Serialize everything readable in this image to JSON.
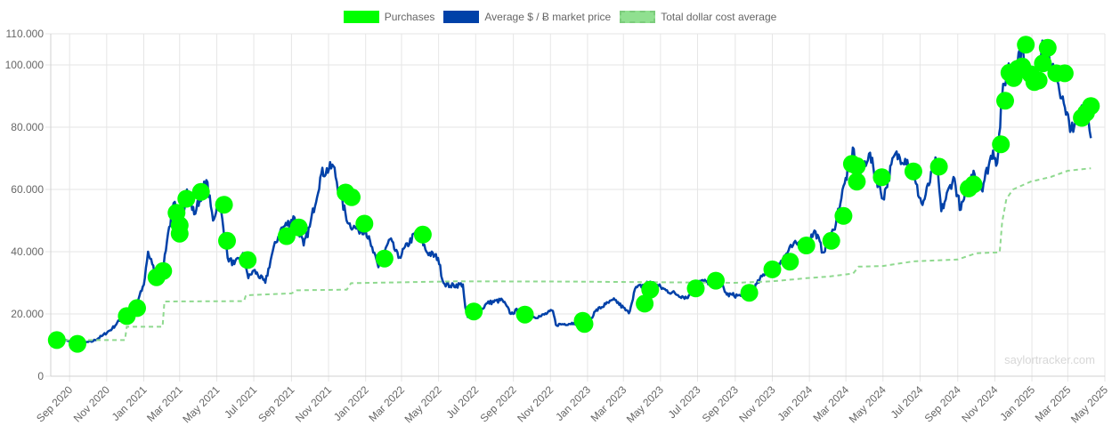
{
  "legend": {
    "purchases": "Purchases",
    "avg_price": "Average $ / Ƀ market price",
    "tdca": "Total dollar cost average"
  },
  "watermark": "saylortracker.com",
  "colors": {
    "purchases": "#00ff00",
    "avg_price": "#0041a8",
    "tdca": "#8fd98f",
    "grid": "#e6e6e6",
    "tick_text": "#666666"
  },
  "chart_data": {
    "type": "line",
    "ylim": [
      0,
      110000
    ],
    "y_ticks": [
      0,
      20000,
      40000,
      60000,
      80000,
      100000,
      110000
    ],
    "y_tick_labels": [
      "0",
      "20.000",
      "40.000",
      "60.000",
      "80.000",
      "100.000",
      "110.000"
    ],
    "x_tick_dates": [
      "2020-09-01",
      "2020-11-01",
      "2021-01-01",
      "2021-03-01",
      "2021-05-01",
      "2021-07-01",
      "2021-09-01",
      "2021-11-01",
      "2022-01-01",
      "2022-03-01",
      "2022-05-01",
      "2022-07-01",
      "2022-09-01",
      "2022-11-01",
      "2023-01-01",
      "2023-03-01",
      "2023-05-01",
      "2023-07-01",
      "2023-09-01",
      "2023-11-01",
      "2024-01-01",
      "2024-03-01",
      "2024-05-01",
      "2024-07-01",
      "2024-09-01",
      "2024-11-01",
      "2025-01-01",
      "2025-03-01",
      "2025-05-01"
    ],
    "x_tick_labels": [
      "Sep 2020",
      "Nov 2020",
      "Jan 2021",
      "Mar 2021",
      "May 2021",
      "Jul 2021",
      "Sep 2021",
      "Nov 2021",
      "Jan 2022",
      "Mar 2022",
      "May 2022",
      "Jul 2022",
      "Sep 2022",
      "Nov 2022",
      "Jan 2023",
      "Mar 2023",
      "May 2023",
      "Jul 2023",
      "Sep 2023",
      "Nov 2023",
      "Jan 2024",
      "Mar 2024",
      "May 2024",
      "Jul 2024",
      "Sep 2024",
      "Nov 2024",
      "Jan 2025",
      "Mar 2025",
      "May 2025"
    ],
    "legend_position": "top",
    "grid": true,
    "series": [
      {
        "name": "Average $ / Ƀ market price",
        "style": "line",
        "points": [
          [
            "2020-08-10",
            11700
          ],
          [
            "2020-08-25",
            11600
          ],
          [
            "2020-09-10",
            10300
          ],
          [
            "2020-09-25",
            10700
          ],
          [
            "2020-10-10",
            11300
          ],
          [
            "2020-10-25",
            13000
          ],
          [
            "2020-11-10",
            15300
          ],
          [
            "2020-11-25",
            18500
          ],
          [
            "2020-12-10",
            18200
          ],
          [
            "2020-12-20",
            23000
          ],
          [
            "2021-01-01",
            29300
          ],
          [
            "2021-01-08",
            40000
          ],
          [
            "2021-01-15",
            36000
          ],
          [
            "2021-01-22",
            31000
          ],
          [
            "2021-02-01",
            34000
          ],
          [
            "2021-02-10",
            46000
          ],
          [
            "2021-02-21",
            56000
          ],
          [
            "2021-02-28",
            45000
          ],
          [
            "2021-03-13",
            60000
          ],
          [
            "2021-03-25",
            52000
          ],
          [
            "2021-04-14",
            63000
          ],
          [
            "2021-04-25",
            50000
          ],
          [
            "2021-05-05",
            57000
          ],
          [
            "2021-05-19",
            38000
          ],
          [
            "2021-05-30",
            36000
          ],
          [
            "2021-06-15",
            39000
          ],
          [
            "2021-06-22",
            31500
          ],
          [
            "2021-07-01",
            34000
          ],
          [
            "2021-07-20",
            30000
          ],
          [
            "2021-08-01",
            40000
          ],
          [
            "2021-08-14",
            47000
          ],
          [
            "2021-09-06",
            51000
          ],
          [
            "2021-09-21",
            42000
          ],
          [
            "2021-10-01",
            48000
          ],
          [
            "2021-10-20",
            65000
          ],
          [
            "2021-11-09",
            67500
          ],
          [
            "2021-11-20",
            58000
          ],
          [
            "2021-12-04",
            49000
          ],
          [
            "2021-12-20",
            47000
          ],
          [
            "2022-01-01",
            47000
          ],
          [
            "2022-01-10",
            41800
          ],
          [
            "2022-01-22",
            35000
          ],
          [
            "2022-02-10",
            44000
          ],
          [
            "2022-02-24",
            38000
          ],
          [
            "2022-03-28",
            47000
          ],
          [
            "2022-04-11",
            40000
          ],
          [
            "2022-04-30",
            38000
          ],
          [
            "2022-05-09",
            30000
          ],
          [
            "2022-05-20",
            29000
          ],
          [
            "2022-06-10",
            29500
          ],
          [
            "2022-06-14",
            22000
          ],
          [
            "2022-06-18",
            19000
          ],
          [
            "2022-07-01",
            19300
          ],
          [
            "2022-07-20",
            23500
          ],
          [
            "2022-08-14",
            24500
          ],
          [
            "2022-08-28",
            20000
          ],
          [
            "2022-09-10",
            21500
          ],
          [
            "2022-09-20",
            19000
          ],
          [
            "2022-10-15",
            19200
          ],
          [
            "2022-11-05",
            21000
          ],
          [
            "2022-11-10",
            16500
          ],
          [
            "2022-12-10",
            17100
          ],
          [
            "2022-12-31",
            16600
          ],
          [
            "2023-01-14",
            20900
          ],
          [
            "2023-01-31",
            23100
          ],
          [
            "2023-02-15",
            24500
          ],
          [
            "2023-03-10",
            20200
          ],
          [
            "2023-03-20",
            28000
          ],
          [
            "2023-04-14",
            30400
          ],
          [
            "2023-05-10",
            27600
          ],
          [
            "2023-06-15",
            25100
          ],
          [
            "2023-06-25",
            30500
          ],
          [
            "2023-07-15",
            30300
          ],
          [
            "2023-08-10",
            29500
          ],
          [
            "2023-08-18",
            26200
          ],
          [
            "2023-09-10",
            25800
          ],
          [
            "2023-10-01",
            27900
          ],
          [
            "2023-10-24",
            34500
          ],
          [
            "2023-11-15",
            37000
          ],
          [
            "2023-12-05",
            42000
          ],
          [
            "2024-01-01",
            44000
          ],
          [
            "2024-01-11",
            46500
          ],
          [
            "2024-01-23",
            39800
          ],
          [
            "2024-02-10",
            47000
          ],
          [
            "2024-02-28",
            62000
          ],
          [
            "2024-03-14",
            73000
          ],
          [
            "2024-03-20",
            63000
          ],
          [
            "2024-04-08",
            71500
          ],
          [
            "2024-05-01",
            57000
          ],
          [
            "2024-05-20",
            71000
          ],
          [
            "2024-06-10",
            69500
          ],
          [
            "2024-07-05",
            55000
          ],
          [
            "2024-07-28",
            69500
          ],
          [
            "2024-08-05",
            53000
          ],
          [
            "2024-08-25",
            64000
          ],
          [
            "2024-09-06",
            53500
          ],
          [
            "2024-09-27",
            66000
          ],
          [
            "2024-10-10",
            60000
          ],
          [
            "2024-10-29",
            72500
          ],
          [
            "2024-11-05",
            68500
          ],
          [
            "2024-11-13",
            90000
          ],
          [
            "2024-11-22",
            99000
          ],
          [
            "2024-12-05",
            101000
          ],
          [
            "2024-12-17",
            106000
          ],
          [
            "2024-12-30",
            92500
          ],
          [
            "2025-01-20",
            106000
          ],
          [
            "2025-02-03",
            98000
          ],
          [
            "2025-02-10",
            97000
          ],
          [
            "2025-02-26",
            84000
          ],
          [
            "2025-03-10",
            78500
          ],
          [
            "2025-03-24",
            87000
          ],
          [
            "2025-04-02",
            85000
          ],
          [
            "2025-04-08",
            76500
          ]
        ]
      },
      {
        "name": "Total dollar cost average",
        "style": "dashed-step",
        "points": [
          [
            "2020-08-10",
            11600
          ],
          [
            "2020-12-01",
            11600
          ],
          [
            "2020-12-04",
            15900
          ],
          [
            "2021-02-01",
            15900
          ],
          [
            "2021-02-04",
            24000
          ],
          [
            "2021-06-15",
            24100
          ],
          [
            "2021-06-18",
            26000
          ],
          [
            "2021-09-01",
            26600
          ],
          [
            "2021-09-10",
            27600
          ],
          [
            "2021-12-01",
            27800
          ],
          [
            "2021-12-08",
            29900
          ],
          [
            "2022-06-01",
            30500
          ],
          [
            "2022-12-01",
            30400
          ],
          [
            "2023-09-01",
            30000
          ],
          [
            "2023-11-01",
            30500
          ],
          [
            "2023-12-27",
            31500
          ],
          [
            "2024-02-01",
            32000
          ],
          [
            "2024-03-13",
            33000
          ],
          [
            "2024-03-22",
            35200
          ],
          [
            "2024-05-01",
            35400
          ],
          [
            "2024-06-20",
            36900
          ],
          [
            "2024-09-01",
            37500
          ],
          [
            "2024-10-01",
            39500
          ],
          [
            "2024-11-09",
            39800
          ],
          [
            "2024-11-13",
            49500
          ],
          [
            "2024-11-20",
            57000
          ],
          [
            "2024-12-01",
            60000
          ],
          [
            "2024-12-30",
            62500
          ],
          [
            "2025-02-01",
            64000
          ],
          [
            "2025-03-01",
            66000
          ],
          [
            "2025-04-08",
            66800
          ]
        ]
      },
      {
        "name": "Purchases",
        "style": "points",
        "points": [
          [
            "2020-08-11",
            11600
          ],
          [
            "2020-09-14",
            10400
          ],
          [
            "2020-12-04",
            19300
          ],
          [
            "2020-12-21",
            21900
          ],
          [
            "2021-01-22",
            31800
          ],
          [
            "2021-02-02",
            33800
          ],
          [
            "2021-02-24",
            52500
          ],
          [
            "2021-03-01",
            48500
          ],
          [
            "2021-03-01",
            45800
          ],
          [
            "2021-03-12",
            57000
          ],
          [
            "2021-04-05",
            59200
          ],
          [
            "2021-05-13",
            55100
          ],
          [
            "2021-05-18",
            43500
          ],
          [
            "2021-06-21",
            37300
          ],
          [
            "2021-08-24",
            45000
          ],
          [
            "2021-09-13",
            47800
          ],
          [
            "2021-11-29",
            59000
          ],
          [
            "2021-12-09",
            57500
          ],
          [
            "2021-12-30",
            49000
          ],
          [
            "2022-02-01",
            37800
          ],
          [
            "2022-04-05",
            45500
          ],
          [
            "2022-06-28",
            20800
          ],
          [
            "2022-09-20",
            19800
          ],
          [
            "2022-12-24",
            17800
          ],
          [
            "2022-12-27",
            16800
          ],
          [
            "2023-04-05",
            23300
          ],
          [
            "2023-04-14",
            27800
          ],
          [
            "2023-06-28",
            28200
          ],
          [
            "2023-07-31",
            30700
          ],
          [
            "2023-09-24",
            26800
          ],
          [
            "2023-11-01",
            34300
          ],
          [
            "2023-11-30",
            36800
          ],
          [
            "2023-12-27",
            42000
          ],
          [
            "2024-02-06",
            43500
          ],
          [
            "2024-02-26",
            51500
          ],
          [
            "2024-03-11",
            68200
          ],
          [
            "2024-03-19",
            67500
          ],
          [
            "2024-03-19",
            62500
          ],
          [
            "2024-04-29",
            63900
          ],
          [
            "2024-06-20",
            65800
          ],
          [
            "2024-08-01",
            67300
          ],
          [
            "2024-09-19",
            60300
          ],
          [
            "2024-09-27",
            61600
          ],
          [
            "2024-11-11",
            74500
          ],
          [
            "2024-11-18",
            88500
          ],
          [
            "2024-11-25",
            97500
          ],
          [
            "2024-12-02",
            95800
          ],
          [
            "2024-12-09",
            98800
          ],
          [
            "2024-12-16",
            99500
          ],
          [
            "2024-12-22",
            106500
          ],
          [
            "2024-12-30",
            97000
          ],
          [
            "2025-01-05",
            94500
          ],
          [
            "2025-01-12",
            95000
          ],
          [
            "2025-01-19",
            100500
          ],
          [
            "2025-01-27",
            105500
          ],
          [
            "2025-02-10",
            97300
          ],
          [
            "2025-02-24",
            97300
          ],
          [
            "2025-03-24",
            83000
          ],
          [
            "2025-03-31",
            84600
          ],
          [
            "2025-04-08",
            86800
          ]
        ]
      }
    ]
  }
}
